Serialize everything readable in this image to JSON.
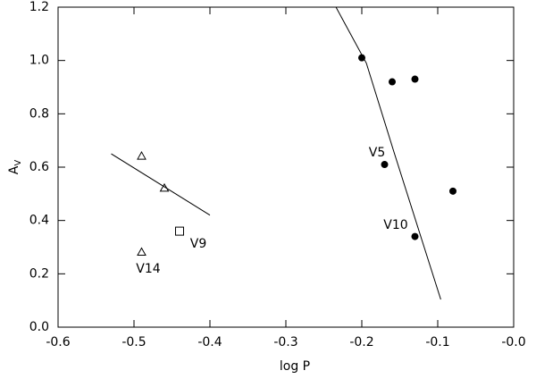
{
  "chart_data": {
    "type": "scatter",
    "xlabel": "log P",
    "ylabel": {
      "text": "A",
      "sub": "V"
    },
    "xlim": [
      -0.6,
      0.0
    ],
    "ylim": [
      0.0,
      1.2
    ],
    "xticks": [
      -0.6,
      -0.5,
      -0.4,
      -0.3,
      -0.2,
      -0.1,
      {
        "value": 0,
        "label": "-0.0"
      }
    ],
    "yticks": [
      {
        "value": 0,
        "label": "0.0"
      },
      0.2,
      0.4,
      0.6,
      0.8,
      {
        "value": 1,
        "label": "1.0"
      },
      1.2
    ],
    "color": "#000000",
    "series": [
      {
        "marker": "circle-filled",
        "x": [
          -0.2,
          -0.16,
          -0.13,
          -0.17,
          -0.08,
          -0.13
        ],
        "values": [
          1.01,
          0.92,
          0.93,
          0.61,
          0.51,
          0.34
        ]
      },
      {
        "marker": "triangle-open",
        "x": [
          -0.49,
          -0.46,
          -0.49
        ],
        "values": [
          0.64,
          0.52,
          0.28
        ]
      },
      {
        "marker": "square-open",
        "x": [
          -0.44
        ],
        "values": [
          0.36
        ]
      },
      {
        "marker": "line",
        "x": [
          -0.53,
          -0.4
        ],
        "values": [
          0.65,
          0.42
        ]
      },
      {
        "marker": "line",
        "x": [
          -0.234,
          -0.194,
          -0.158,
          -0.124,
          -0.096
        ],
        "values": [
          1.2,
          0.99,
          0.66,
          0.355,
          0.104
        ]
      }
    ],
    "annotations": [
      {
        "text": "V5"
      },
      {
        "text": "V10"
      },
      {
        "text": "V9"
      },
      {
        "text": "V14"
      }
    ]
  }
}
